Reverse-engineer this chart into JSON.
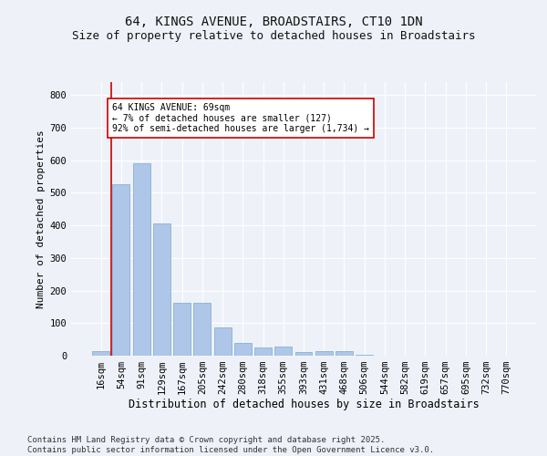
{
  "title1": "64, KINGS AVENUE, BROADSTAIRS, CT10 1DN",
  "title2": "Size of property relative to detached houses in Broadstairs",
  "xlabel": "Distribution of detached houses by size in Broadstairs",
  "ylabel": "Number of detached properties",
  "categories": [
    "16sqm",
    "54sqm",
    "91sqm",
    "129sqm",
    "167sqm",
    "205sqm",
    "242sqm",
    "280sqm",
    "318sqm",
    "355sqm",
    "393sqm",
    "431sqm",
    "468sqm",
    "506sqm",
    "544sqm",
    "582sqm",
    "619sqm",
    "657sqm",
    "695sqm",
    "732sqm",
    "770sqm"
  ],
  "values": [
    13,
    527,
    592,
    405,
    163,
    163,
    88,
    40,
    25,
    27,
    10,
    13,
    13,
    4,
    0,
    0,
    0,
    0,
    0,
    0,
    0
  ],
  "bar_color": "#aec6e8",
  "bar_edge_color": "#7aaad0",
  "vline_color": "#cc0000",
  "annotation_text": "64 KINGS AVENUE: 69sqm\n← 7% of detached houses are smaller (127)\n92% of semi-detached houses are larger (1,734) →",
  "annotation_box_color": "#ffffff",
  "annotation_box_edge": "#cc0000",
  "footnote": "Contains HM Land Registry data © Crown copyright and database right 2025.\nContains public sector information licensed under the Open Government Licence v3.0.",
  "ylim": [
    0,
    840
  ],
  "yticks": [
    0,
    100,
    200,
    300,
    400,
    500,
    600,
    700,
    800
  ],
  "background_color": "#eef2f8",
  "grid_color": "#ffffff",
  "title1_fontsize": 10,
  "title2_fontsize": 9,
  "xlabel_fontsize": 8.5,
  "ylabel_fontsize": 8,
  "footnote_fontsize": 6.5,
  "tick_fontsize": 7.5
}
